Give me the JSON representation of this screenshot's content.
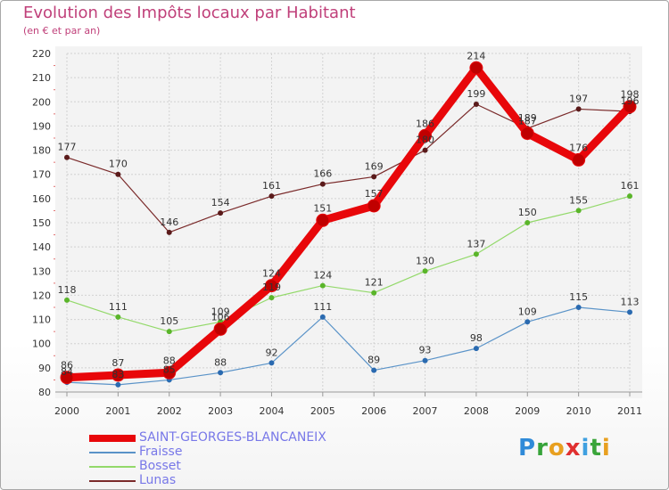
{
  "chart_data": {
    "type": "line",
    "title": "Evolution des Impôts locaux par Habitant",
    "subtitle": "(en € et par an)",
    "xlabel": "",
    "ylabel": "",
    "ylim": [
      80,
      220
    ],
    "yticks": [
      "80",
      "90",
      "100",
      "110",
      "120",
      "130",
      "140",
      "150",
      "160",
      "170",
      "180",
      "190",
      "200",
      "210",
      "220"
    ],
    "categories": [
      "2000",
      "2001",
      "2002",
      "2003",
      "2004",
      "2005",
      "2006",
      "2007",
      "2008",
      "2009",
      "2010",
      "2011"
    ],
    "grid": true,
    "legend_position": "bottom-left",
    "series": [
      {
        "name": "SAINT-GEORGES-BLANCANEIX",
        "color": "#e8070a",
        "values": [
          86,
          87,
          88,
          106,
          124,
          151,
          157,
          186,
          214,
          187,
          176,
          198
        ]
      },
      {
        "name": "Fraisse",
        "color": "#5a93c8",
        "values": [
          84,
          83,
          85,
          88,
          92,
          111,
          89,
          93,
          98,
          109,
          115,
          113
        ]
      },
      {
        "name": "Bosset",
        "color": "#93d96a",
        "values": [
          118,
          111,
          105,
          109,
          119,
          124,
          121,
          130,
          137,
          150,
          155,
          161
        ]
      },
      {
        "name": "Lunas",
        "color": "#7a2a2a",
        "values": [
          177,
          170,
          146,
          154,
          161,
          166,
          169,
          180,
          199,
          189,
          197,
          196
        ]
      }
    ],
    "data_labels": [
      [
        "86",
        "87",
        "88",
        "106",
        "124",
        "151",
        "157",
        "186",
        "214",
        "187",
        "176",
        "198"
      ],
      [
        "84",
        "83",
        "85",
        "88",
        "92",
        "111",
        "89",
        "93",
        "98",
        "109",
        "115",
        "113"
      ],
      [
        "118",
        "111",
        "105",
        "109",
        "119",
        "124",
        "121",
        "130",
        "137",
        "150",
        "155",
        "161"
      ],
      [
        "177",
        "170",
        "146",
        "154",
        "161",
        "166",
        "169",
        "180",
        "199",
        "189",
        "197",
        "196"
      ]
    ]
  },
  "logo": {
    "name": "Proxiti",
    "letters": [
      "P",
      "r",
      "o",
      "x",
      "i",
      "t",
      "i"
    ],
    "colors": [
      "#2f8ad8",
      "#37a33a",
      "#e8a020",
      "#e03030",
      "#3fa0e0",
      "#3aa53a",
      "#e8a020"
    ]
  }
}
